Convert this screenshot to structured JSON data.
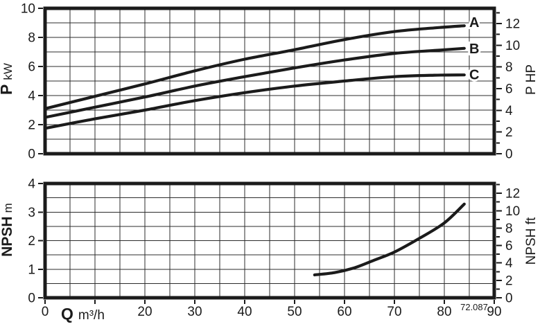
{
  "figure_code": "72.087",
  "colors": {
    "ink": "#1b1b1b",
    "grid": "#2b2b2b",
    "background": "#ffffff"
  },
  "x_axis_title": {
    "symbol": "Q",
    "unit": "m³/h"
  },
  "chart_data": [
    {
      "type": "line",
      "name": "power-vs-flow",
      "title": "",
      "xlabel": "Q m³/h",
      "x_range": [
        0,
        90
      ],
      "x_grid_step": 5,
      "ylabel_left": "P kW",
      "ylabel_left_parts": {
        "symbol": "P",
        "unit": "kW"
      },
      "y_left_range": [
        0,
        10
      ],
      "y_left_tick_step": 2,
      "y_left_grid_step": 1,
      "ylabel_right": "P HP",
      "y_right_range": [
        0,
        12
      ],
      "y_right_label_step": 2,
      "y_right_tick_step": 1,
      "y_right_unit_in_left": 0.7457,
      "grid": true,
      "legend": "curve labels A, B, C at right end of curves",
      "series": [
        {
          "name": "A",
          "label": {
            "q": 86,
            "p": 9.05
          },
          "points": [
            [
              0,
              3.1
            ],
            [
              10,
              3.95
            ],
            [
              20,
              4.8
            ],
            [
              30,
              5.7
            ],
            [
              40,
              6.5
            ],
            [
              50,
              7.15
            ],
            [
              60,
              7.85
            ],
            [
              70,
              8.4
            ],
            [
              78,
              8.65
            ],
            [
              84,
              8.8
            ]
          ]
        },
        {
          "name": "B",
          "label": {
            "q": 86,
            "p": 7.25
          },
          "points": [
            [
              0,
              2.5
            ],
            [
              10,
              3.2
            ],
            [
              20,
              3.9
            ],
            [
              30,
              4.65
            ],
            [
              40,
              5.3
            ],
            [
              50,
              5.9
            ],
            [
              60,
              6.45
            ],
            [
              70,
              6.9
            ],
            [
              78,
              7.1
            ],
            [
              84,
              7.25
            ]
          ]
        },
        {
          "name": "C",
          "label": {
            "q": 86,
            "p": 5.45
          },
          "points": [
            [
              0,
              1.75
            ],
            [
              10,
              2.4
            ],
            [
              20,
              3.0
            ],
            [
              30,
              3.65
            ],
            [
              40,
              4.2
            ],
            [
              50,
              4.65
            ],
            [
              60,
              5.0
            ],
            [
              70,
              5.3
            ],
            [
              78,
              5.4
            ],
            [
              84,
              5.42
            ]
          ]
        }
      ]
    },
    {
      "type": "line",
      "name": "npsh-vs-flow",
      "title": "",
      "xlabel": "Q m³/h",
      "x_range": [
        0,
        90
      ],
      "x_grid_step": 5,
      "x_tick_step": 10,
      "x_tick_labels": [
        0,
        20,
        30,
        40,
        50,
        60,
        70,
        80,
        90
      ],
      "ylabel_left": "NPSH m",
      "ylabel_left_parts": {
        "symbol": "NPSH",
        "unit": "m"
      },
      "y_left_range": [
        0,
        4
      ],
      "y_left_tick_step": 1,
      "y_left_grid_step": 0.5,
      "ylabel_right": "NPSH ft",
      "y_right_range": [
        0,
        12
      ],
      "y_right_label_step": 2,
      "y_right_tick_step": 1,
      "y_right_unit_in_left": 0.3048,
      "grid": true,
      "series": [
        {
          "name": "NPSH",
          "points": [
            [
              54,
              0.8
            ],
            [
              58,
              0.88
            ],
            [
              62,
              1.05
            ],
            [
              66,
              1.32
            ],
            [
              70,
              1.6
            ],
            [
              75,
              2.08
            ],
            [
              80,
              2.62
            ],
            [
              84,
              3.28
            ]
          ]
        }
      ]
    }
  ]
}
